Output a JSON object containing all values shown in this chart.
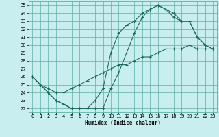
{
  "xlabel": "Humidex (Indice chaleur)",
  "bg_color": "#c8eef0",
  "line_color": "#1a6b5a",
  "grid_color": "#5ab0a8",
  "xlim": [
    -0.5,
    23.5
  ],
  "ylim": [
    21.5,
    35.5
  ],
  "xticks": [
    0,
    1,
    2,
    3,
    4,
    5,
    6,
    7,
    8,
    9,
    10,
    11,
    12,
    13,
    14,
    15,
    16,
    17,
    18,
    19,
    20,
    21,
    22,
    23
  ],
  "yticks": [
    22,
    23,
    24,
    25,
    26,
    27,
    28,
    29,
    30,
    31,
    32,
    33,
    34,
    35
  ],
  "line1_x": [
    0,
    1,
    2,
    3,
    4,
    5,
    6,
    7,
    8,
    9,
    10,
    11,
    12,
    13,
    14,
    15,
    16,
    17,
    18,
    19,
    20,
    21,
    22,
    23
  ],
  "line1_y": [
    26,
    25,
    24,
    23,
    22.5,
    22,
    22,
    22,
    23,
    24.5,
    29,
    31.5,
    32.5,
    33,
    34,
    34.5,
    35,
    34.5,
    33.5,
    33,
    33,
    31,
    30,
    29.5
  ],
  "line2_x": [
    0,
    1,
    2,
    3,
    4,
    5,
    6,
    7,
    8,
    9,
    10,
    11,
    12,
    13,
    14,
    15,
    16,
    17,
    18,
    19,
    20,
    21,
    22,
    23
  ],
  "line2_y": [
    26,
    25,
    24,
    23,
    22.5,
    22,
    22,
    22,
    22,
    22,
    24.5,
    26.5,
    29,
    31.5,
    33.5,
    34.5,
    35,
    34.5,
    34,
    33,
    33,
    31,
    30,
    29.5
  ],
  "line3_x": [
    0,
    1,
    2,
    3,
    4,
    5,
    6,
    7,
    8,
    9,
    10,
    11,
    12,
    13,
    14,
    15,
    16,
    17,
    18,
    19,
    20,
    21,
    22,
    23
  ],
  "line3_y": [
    26,
    25,
    24.5,
    24,
    24,
    24.5,
    25,
    25.5,
    26,
    26.5,
    27,
    27.5,
    27.5,
    28,
    28.5,
    28.5,
    29,
    29.5,
    29.5,
    29.5,
    30,
    29.5,
    29.5,
    29.5
  ]
}
